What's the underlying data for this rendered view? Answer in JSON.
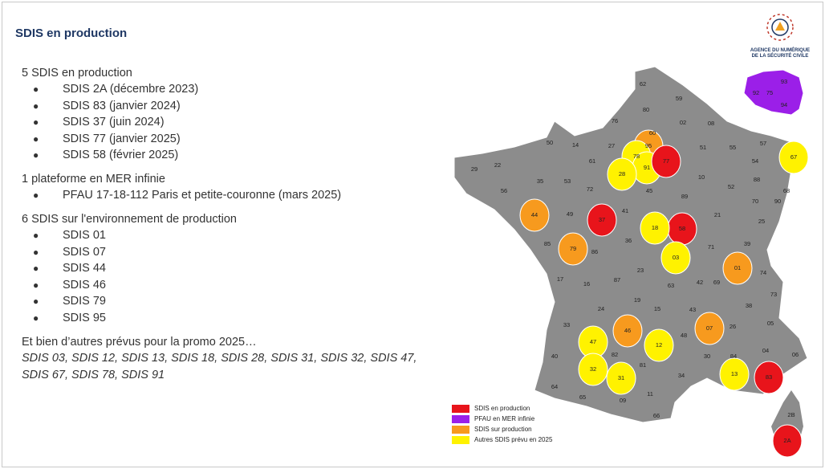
{
  "title": "SDIS en production",
  "sections": [
    {
      "heading": "5 SDIS en production",
      "items": [
        "SDIS 2A (décembre 2023)",
        "SDIS 83 (janvier 2024)",
        "SDIS 37 (juin 2024)",
        "SDIS 77 (janvier 2025)",
        "SDIS 58 (février 2025)"
      ]
    },
    {
      "heading": "1 plateforme en MER infinie",
      "items": [
        "PFAU 17-18-112 Paris et petite-couronne (mars 2025)"
      ]
    },
    {
      "heading": "6 SDIS sur l'environnement de production",
      "items": [
        "SDIS 01",
        "SDIS 07",
        "SDIS 44",
        "SDIS 46",
        "SDIS 79",
        "SDIS 95"
      ]
    }
  ],
  "footer": {
    "heading": "Et bien d’autres prévus pour la promo 2025…",
    "text": "SDIS 03, SDIS 12, SDIS 13, SDIS 18, SDIS 28, SDIS 31, SDIS 32, SDIS 47, SDIS 67, SDIS 78, SDIS 91"
  },
  "logo": {
    "lines": [
      "AGENCE DU NUMÉRIQUE",
      "DE LA SÉCURITÉ CIVILE"
    ]
  },
  "map": {
    "legend": [
      {
        "label": "SDIS en production",
        "color": "#e8141b"
      },
      {
        "label": "PFAU en MER infinie",
        "color": "#9b1fe8"
      },
      {
        "label": "SDIS sur production",
        "color": "#f79a1e"
      },
      {
        "label": "Autres SDIS prévu en 2025",
        "color": "#fff200"
      }
    ],
    "departments": [
      {
        "label": "62"
      },
      {
        "label": "59"
      },
      {
        "label": "80"
      },
      {
        "label": "76"
      },
      {
        "label": "02"
      },
      {
        "label": "08"
      },
      {
        "label": "60"
      },
      {
        "label": "50"
      },
      {
        "label": "14"
      },
      {
        "label": "27"
      },
      {
        "label": "95",
        "color": "#f79a1e"
      },
      {
        "label": "51"
      },
      {
        "label": "55"
      },
      {
        "label": "57"
      },
      {
        "label": "67",
        "color": "#fff200"
      },
      {
        "label": "29"
      },
      {
        "label": "22"
      },
      {
        "label": "61"
      },
      {
        "label": "78",
        "color": "#fff200"
      },
      {
        "label": "91",
        "color": "#fff200"
      },
      {
        "label": "77",
        "color": "#e8141b"
      },
      {
        "label": "28",
        "color": "#fff200"
      },
      {
        "label": "54"
      },
      {
        "label": "35"
      },
      {
        "label": "53"
      },
      {
        "label": "72"
      },
      {
        "label": "10"
      },
      {
        "label": "52"
      },
      {
        "label": "88"
      },
      {
        "label": "56"
      },
      {
        "label": "45"
      },
      {
        "label": "89"
      },
      {
        "label": "70"
      },
      {
        "label": "90"
      },
      {
        "label": "68"
      },
      {
        "label": "44",
        "color": "#f79a1e"
      },
      {
        "label": "49"
      },
      {
        "label": "37",
        "color": "#e8141b"
      },
      {
        "label": "41"
      },
      {
        "label": "58",
        "color": "#e8141b"
      },
      {
        "label": "21"
      },
      {
        "label": "25"
      },
      {
        "label": "18",
        "color": "#fff200"
      },
      {
        "label": "85"
      },
      {
        "label": "79",
        "color": "#f79a1e"
      },
      {
        "label": "86"
      },
      {
        "label": "36"
      },
      {
        "label": "03",
        "color": "#fff200"
      },
      {
        "label": "71"
      },
      {
        "label": "39"
      },
      {
        "label": "01",
        "color": "#f79a1e"
      },
      {
        "label": "74"
      },
      {
        "label": "17"
      },
      {
        "label": "16"
      },
      {
        "label": "87"
      },
      {
        "label": "23"
      },
      {
        "label": "42"
      },
      {
        "label": "69"
      },
      {
        "label": "63"
      },
      {
        "label": "73"
      },
      {
        "label": "38"
      },
      {
        "label": "24"
      },
      {
        "label": "19"
      },
      {
        "label": "15"
      },
      {
        "label": "43"
      },
      {
        "label": "33"
      },
      {
        "label": "46",
        "color": "#f79a1e"
      },
      {
        "label": "07",
        "color": "#f79a1e"
      },
      {
        "label": "26"
      },
      {
        "label": "05"
      },
      {
        "label": "47",
        "color": "#fff200"
      },
      {
        "label": "12",
        "color": "#fff200"
      },
      {
        "label": "48"
      },
      {
        "label": "04"
      },
      {
        "label": "06"
      },
      {
        "label": "40"
      },
      {
        "label": "82"
      },
      {
        "label": "81"
      },
      {
        "label": "30"
      },
      {
        "label": "84"
      },
      {
        "label": "32",
        "color": "#fff200"
      },
      {
        "label": "31",
        "color": "#fff200"
      },
      {
        "label": "34"
      },
      {
        "label": "13",
        "color": "#fff200"
      },
      {
        "label": "83",
        "color": "#e8141b"
      },
      {
        "label": "64"
      },
      {
        "label": "65"
      },
      {
        "label": "09"
      },
      {
        "label": "11"
      },
      {
        "label": "66"
      },
      {
        "label": "2B"
      },
      {
        "label": "2A",
        "color": "#e8141b"
      },
      {
        "label": "93"
      },
      {
        "label": "92"
      },
      {
        "label": "75"
      },
      {
        "label": "94"
      }
    ]
  }
}
